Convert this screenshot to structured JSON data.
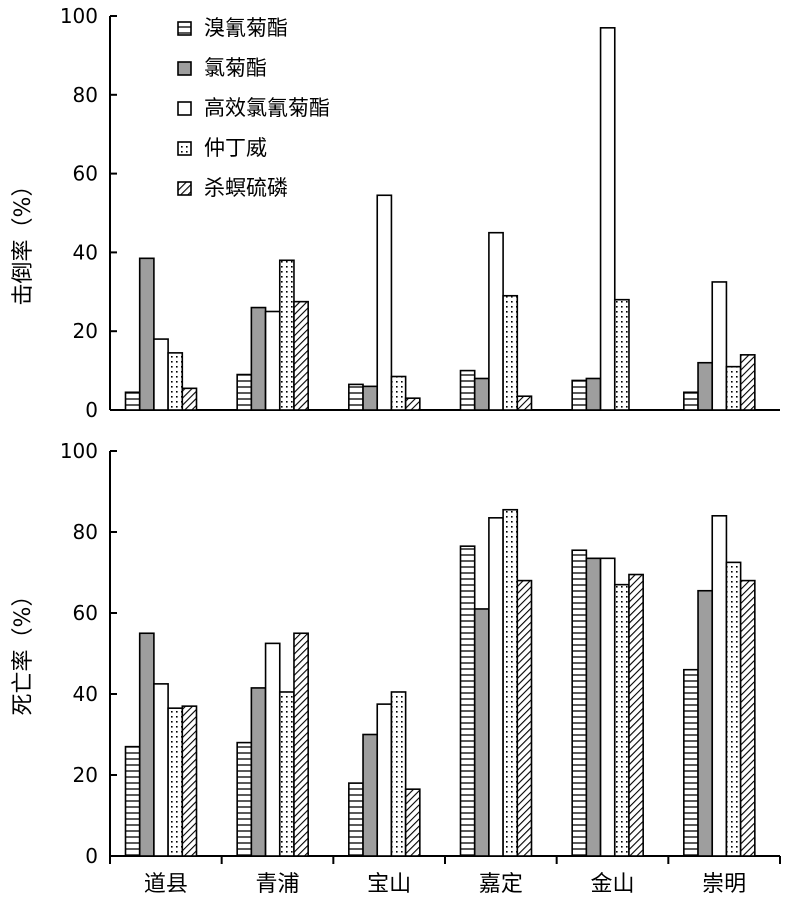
{
  "chart_data": [
    {
      "type": "bar",
      "panel": "top",
      "ylabel": "击倒率（%）",
      "ylim": [
        0,
        100
      ],
      "yticks": [
        "0",
        "20",
        "40",
        "60",
        "80",
        "100"
      ],
      "categories": [
        "道县",
        "青浦",
        "宝山",
        "嘉定",
        "金山",
        "崇明"
      ],
      "legend_position": "top-left",
      "series": [
        {
          "name": "溴氰菊酯",
          "pattern": "hlines",
          "values": [
            4.5,
            9,
            6.5,
            10,
            7.5,
            4.5
          ]
        },
        {
          "name": "氯菊酯",
          "pattern": "gray",
          "values": [
            38.5,
            26,
            6,
            8,
            8,
            12
          ]
        },
        {
          "name": "高效氯氰菊酯",
          "pattern": "white",
          "values": [
            18,
            25,
            54.5,
            45,
            97,
            32.5
          ]
        },
        {
          "name": "仲丁威",
          "pattern": "dots",
          "values": [
            14.5,
            38,
            8.5,
            29,
            28,
            11
          ]
        },
        {
          "name": "杀螟硫磷",
          "pattern": "diag",
          "values": [
            5.5,
            27.5,
            3,
            3.5,
            0,
            14
          ]
        }
      ]
    },
    {
      "type": "bar",
      "panel": "bottom",
      "ylabel": "死亡率（%）",
      "ylim": [
        0,
        100
      ],
      "yticks": [
        "0",
        "20",
        "40",
        "60",
        "80",
        "100"
      ],
      "categories": [
        "道县",
        "青浦",
        "宝山",
        "嘉定",
        "金山",
        "崇明"
      ],
      "series": [
        {
          "name": "溴氰菊酯",
          "pattern": "hlines",
          "values": [
            27,
            28,
            18,
            76.5,
            75.5,
            46
          ]
        },
        {
          "name": "氯菊酯",
          "pattern": "gray",
          "values": [
            55,
            41.5,
            30,
            61,
            73.5,
            65.5
          ]
        },
        {
          "name": "高效氯氰菊酯",
          "pattern": "white",
          "values": [
            42.5,
            52.5,
            37.5,
            83.5,
            73.5,
            84
          ]
        },
        {
          "name": "仲丁威",
          "pattern": "dots",
          "values": [
            36.5,
            40.5,
            40.5,
            85.5,
            67,
            72.5
          ]
        },
        {
          "name": "杀螟硫磷",
          "pattern": "diag",
          "values": [
            37,
            55,
            16.5,
            68,
            69.5,
            68
          ]
        }
      ]
    }
  ]
}
